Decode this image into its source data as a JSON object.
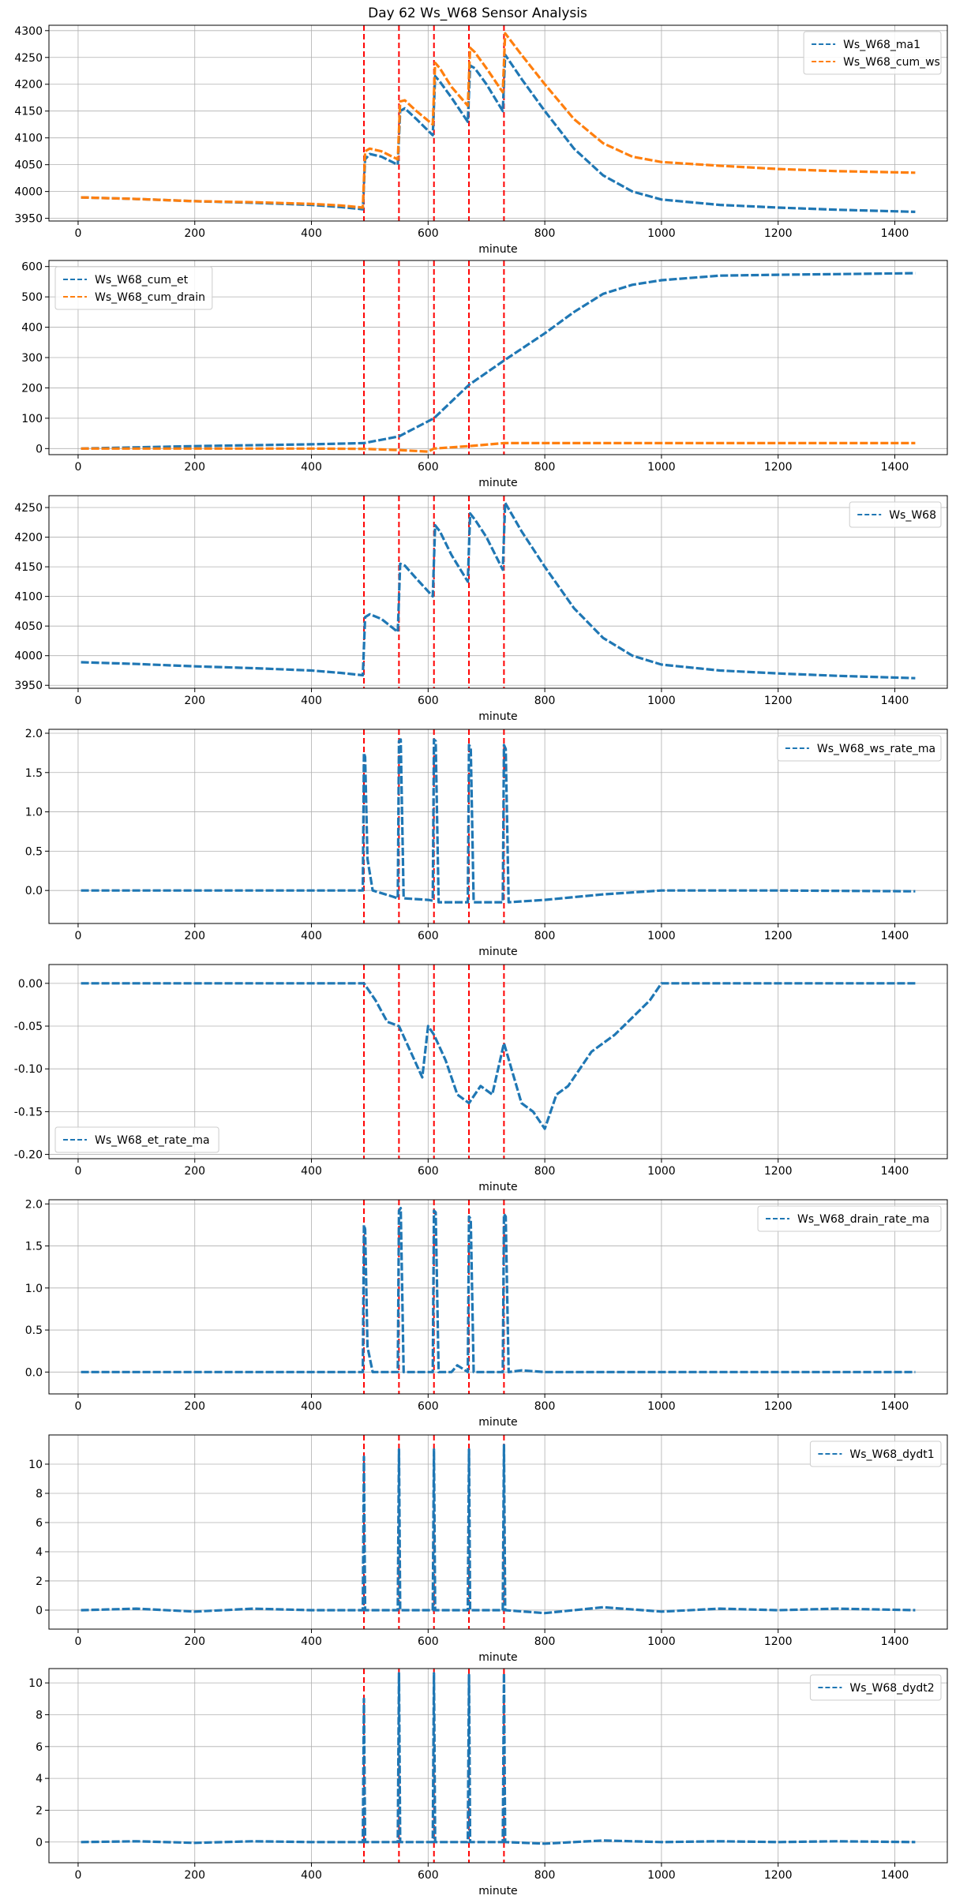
{
  "title": "Day 62 Ws_W68 Sensor Analysis",
  "colors": {
    "blue": "#1f77b4",
    "orange": "#ff7f0e",
    "event": "#ff0000",
    "grid": "#b0b0b0"
  },
  "chart_data": [
    {
      "type": "line",
      "xlabel": "minute",
      "xlim": [
        -50,
        1490
      ],
      "ylim": [
        3945,
        4310
      ],
      "xticks": [
        0,
        200,
        400,
        600,
        800,
        1000,
        1200,
        1400
      ],
      "yticks": [
        3950,
        4000,
        4050,
        4100,
        4150,
        4200,
        4250,
        4300
      ],
      "legend": "top-right",
      "events": [
        490,
        550,
        610,
        670,
        730
      ],
      "series": [
        {
          "name": "Ws_W68_ma1",
          "color": "blue",
          "x": [
            5,
            100,
            200,
            300,
            400,
            450,
            488,
            492,
            500,
            520,
            548,
            552,
            560,
            580,
            608,
            612,
            620,
            640,
            668,
            672,
            680,
            700,
            728,
            732,
            760,
            800,
            850,
            900,
            950,
            1000,
            1100,
            1200,
            1300,
            1435
          ],
          "y": [
            3989,
            3986,
            3982,
            3979,
            3975,
            3971,
            3967,
            4060,
            4070,
            4065,
            4050,
            4150,
            4155,
            4135,
            4105,
            4215,
            4205,
            4175,
            4130,
            4235,
            4230,
            4200,
            4150,
            4255,
            4210,
            4150,
            4080,
            4030,
            4000,
            3985,
            3975,
            3970,
            3966,
            3962
          ]
        },
        {
          "name": "Ws_W68_cum_ws",
          "color": "orange",
          "x": [
            5,
            100,
            200,
            300,
            400,
            450,
            488,
            492,
            500,
            520,
            548,
            552,
            560,
            580,
            608,
            612,
            620,
            640,
            668,
            672,
            680,
            700,
            728,
            732,
            760,
            800,
            850,
            900,
            950,
            1000,
            1100,
            1200,
            1300,
            1435
          ],
          "y": [
            3989,
            3986,
            3982,
            3980,
            3977,
            3974,
            3970,
            4075,
            4080,
            4075,
            4060,
            4168,
            4170,
            4150,
            4125,
            4240,
            4230,
            4195,
            4160,
            4268,
            4260,
            4230,
            4185,
            4295,
            4255,
            4200,
            4135,
            4090,
            4065,
            4055,
            4048,
            4042,
            4038,
            4035
          ]
        }
      ]
    },
    {
      "type": "line",
      "xlabel": "minute",
      "xlim": [
        -50,
        1490
      ],
      "ylim": [
        -20,
        620
      ],
      "xticks": [
        0,
        200,
        400,
        600,
        800,
        1000,
        1200,
        1400
      ],
      "yticks": [
        0,
        100,
        200,
        300,
        400,
        500,
        600
      ],
      "legend": "top-left",
      "events": [
        490,
        550,
        610,
        670,
        730
      ],
      "series": [
        {
          "name": "Ws_W68_cum_et",
          "color": "blue",
          "x": [
            5,
            200,
            400,
            490,
            550,
            610,
            670,
            730,
            800,
            850,
            900,
            950,
            1000,
            1100,
            1200,
            1300,
            1435
          ],
          "y": [
            0,
            8,
            14,
            18,
            40,
            100,
            210,
            290,
            380,
            450,
            510,
            540,
            555,
            570,
            573,
            575,
            578
          ]
        },
        {
          "name": "Ws_W68_cum_drain",
          "color": "orange",
          "x": [
            5,
            200,
            400,
            490,
            550,
            600,
            610,
            670,
            730,
            800,
            1000,
            1200,
            1435
          ],
          "y": [
            0,
            0,
            0,
            -1,
            -5,
            -10,
            0,
            8,
            18,
            18,
            18,
            18,
            18
          ]
        }
      ]
    },
    {
      "type": "line",
      "xlabel": "minute",
      "xlim": [
        -50,
        1490
      ],
      "ylim": [
        3945,
        4270
      ],
      "xticks": [
        0,
        200,
        400,
        600,
        800,
        1000,
        1200,
        1400
      ],
      "yticks": [
        3950,
        4000,
        4050,
        4100,
        4150,
        4200,
        4250
      ],
      "legend": "top-right",
      "events": [
        490,
        550,
        610,
        670,
        730
      ],
      "series": [
        {
          "name": "Ws_W68",
          "color": "blue",
          "x": [
            5,
            100,
            200,
            300,
            400,
            450,
            488,
            492,
            500,
            520,
            548,
            552,
            560,
            580,
            608,
            612,
            620,
            640,
            668,
            672,
            680,
            700,
            728,
            732,
            760,
            800,
            850,
            900,
            950,
            1000,
            1100,
            1200,
            1300,
            1435
          ],
          "y": [
            3989,
            3986,
            3982,
            3979,
            3975,
            3971,
            3967,
            4065,
            4070,
            4062,
            4040,
            4155,
            4152,
            4130,
            4100,
            4220,
            4210,
            4170,
            4125,
            4240,
            4230,
            4200,
            4145,
            4258,
            4210,
            4150,
            4080,
            4030,
            4000,
            3985,
            3975,
            3970,
            3966,
            3962
          ]
        }
      ]
    },
    {
      "type": "line",
      "xlabel": "minute",
      "xlim": [
        -50,
        1490
      ],
      "ylim": [
        -0.42,
        2.05
      ],
      "xticks": [
        0,
        200,
        400,
        600,
        800,
        1000,
        1200,
        1400
      ],
      "yticks": [
        0.0,
        0.5,
        1.0,
        1.5,
        2.0
      ],
      "legend": "top-right",
      "events": [
        490,
        550,
        610,
        670,
        730
      ],
      "series": [
        {
          "name": "Ws_W68_ws_rate_ma",
          "color": "blue",
          "x": [
            5,
            200,
            400,
            488,
            490,
            492,
            496,
            505,
            540,
            548,
            550,
            553,
            558,
            600,
            608,
            610,
            613,
            618,
            668,
            670,
            673,
            678,
            728,
            730,
            733,
            738,
            800,
            900,
            1000,
            1200,
            1435
          ],
          "y": [
            0,
            0,
            0,
            0,
            1.75,
            1.7,
            0.4,
            0.0,
            -0.08,
            -0.1,
            1.9,
            1.92,
            -0.1,
            -0.12,
            -0.13,
            1.92,
            1.9,
            -0.15,
            -0.15,
            1.85,
            1.82,
            -0.15,
            -0.15,
            1.85,
            1.8,
            -0.15,
            -0.12,
            -0.05,
            0,
            0,
            -0.01
          ]
        }
      ]
    },
    {
      "type": "line",
      "xlabel": "minute",
      "xlim": [
        -50,
        1490
      ],
      "ylim": [
        -0.205,
        0.022
      ],
      "xticks": [
        0,
        200,
        400,
        600,
        800,
        1000,
        1200,
        1400
      ],
      "yticks": [
        0.0,
        -0.05,
        -0.1,
        -0.15,
        -0.2
      ],
      "legend": "bottom-left",
      "events": [
        490,
        550,
        610,
        670,
        730
      ],
      "series": [
        {
          "name": "Ws_W68_et_rate_ma",
          "color": "blue",
          "x": [
            5,
            100,
            200,
            300,
            400,
            480,
            490,
            510,
            530,
            550,
            570,
            590,
            600,
            610,
            630,
            650,
            670,
            690,
            710,
            730,
            760,
            780,
            800,
            820,
            840,
            860,
            880,
            900,
            920,
            950,
            980,
            1000,
            1100,
            1200,
            1300,
            1435
          ],
          "y": [
            0,
            0,
            0,
            0,
            0,
            0,
            0,
            -0.02,
            -0.045,
            -0.05,
            -0.08,
            -0.11,
            -0.05,
            -0.06,
            -0.09,
            -0.13,
            -0.14,
            -0.12,
            -0.13,
            -0.07,
            -0.14,
            -0.15,
            -0.17,
            -0.13,
            -0.12,
            -0.1,
            -0.08,
            -0.07,
            -0.06,
            -0.04,
            -0.02,
            0,
            0,
            0,
            0,
            0
          ]
        }
      ]
    },
    {
      "type": "line",
      "xlabel": "minute",
      "xlim": [
        -50,
        1490
      ],
      "ylim": [
        -0.26,
        2.05
      ],
      "xticks": [
        0,
        200,
        400,
        600,
        800,
        1000,
        1200,
        1400
      ],
      "yticks": [
        0.0,
        0.5,
        1.0,
        1.5,
        2.0
      ],
      "legend": "top-right",
      "events": [
        490,
        550,
        610,
        670,
        730
      ],
      "series": [
        {
          "name": "Ws_W68_drain_rate_ma",
          "color": "blue",
          "x": [
            5,
            200,
            400,
            488,
            490,
            492,
            496,
            505,
            548,
            550,
            553,
            558,
            608,
            610,
            613,
            618,
            640,
            650,
            668,
            670,
            673,
            678,
            728,
            730,
            733,
            738,
            760,
            800,
            1000,
            1200,
            1435
          ],
          "y": [
            0,
            0,
            0,
            0,
            1.75,
            1.7,
            0.3,
            0.0,
            0.0,
            1.92,
            1.95,
            0.0,
            0.0,
            1.92,
            1.9,
            0.0,
            0.0,
            0.08,
            0.0,
            1.85,
            1.82,
            0.0,
            0.0,
            1.88,
            1.85,
            0.0,
            0.02,
            0,
            0,
            0,
            0
          ]
        }
      ]
    },
    {
      "type": "line",
      "xlabel": "minute",
      "xlim": [
        -50,
        1490
      ],
      "ylim": [
        -1.3,
        12.0
      ],
      "xticks": [
        0,
        200,
        400,
        600,
        800,
        1000,
        1200,
        1400
      ],
      "yticks": [
        0,
        2,
        4,
        6,
        8,
        10
      ],
      "legend": "top-right",
      "events": [
        490,
        550,
        610,
        670,
        730
      ],
      "series": [
        {
          "name": "Ws_W68_dydt1",
          "color": "blue",
          "x": [
            5,
            100,
            200,
            300,
            400,
            488,
            490,
            492,
            548,
            550,
            552,
            608,
            610,
            612,
            668,
            670,
            672,
            728,
            730,
            732,
            800,
            900,
            1000,
            1100,
            1200,
            1300,
            1435
          ],
          "y": [
            0,
            0.1,
            -0.1,
            0.1,
            0,
            0,
            10.5,
            0,
            0,
            11,
            0,
            0,
            11,
            0,
            0,
            11,
            0,
            0,
            11.3,
            0,
            -0.2,
            0.2,
            -0.1,
            0.1,
            0,
            0.1,
            0
          ]
        }
      ]
    },
    {
      "type": "line",
      "xlabel": "minute",
      "xlim": [
        -50,
        1490
      ],
      "ylim": [
        -1.3,
        10.9
      ],
      "xticks": [
        0,
        200,
        400,
        600,
        800,
        1000,
        1200,
        1400
      ],
      "yticks": [
        0,
        2,
        4,
        6,
        8,
        10
      ],
      "legend": "top-right",
      "events": [
        490,
        550,
        610,
        670,
        730
      ],
      "series": [
        {
          "name": "Ws_W68_dydt2",
          "color": "blue",
          "x": [
            5,
            100,
            200,
            300,
            400,
            488,
            490,
            492,
            548,
            550,
            552,
            608,
            610,
            612,
            668,
            670,
            672,
            728,
            730,
            732,
            800,
            900,
            1000,
            1100,
            1200,
            1300,
            1435
          ],
          "y": [
            0,
            0.05,
            -0.05,
            0.05,
            0,
            0,
            9.0,
            0,
            0,
            10.6,
            0,
            0,
            10.6,
            0,
            0,
            10.5,
            0,
            0,
            10.6,
            0,
            -0.1,
            0.1,
            0,
            0.05,
            0,
            0.05,
            0
          ]
        }
      ]
    }
  ]
}
